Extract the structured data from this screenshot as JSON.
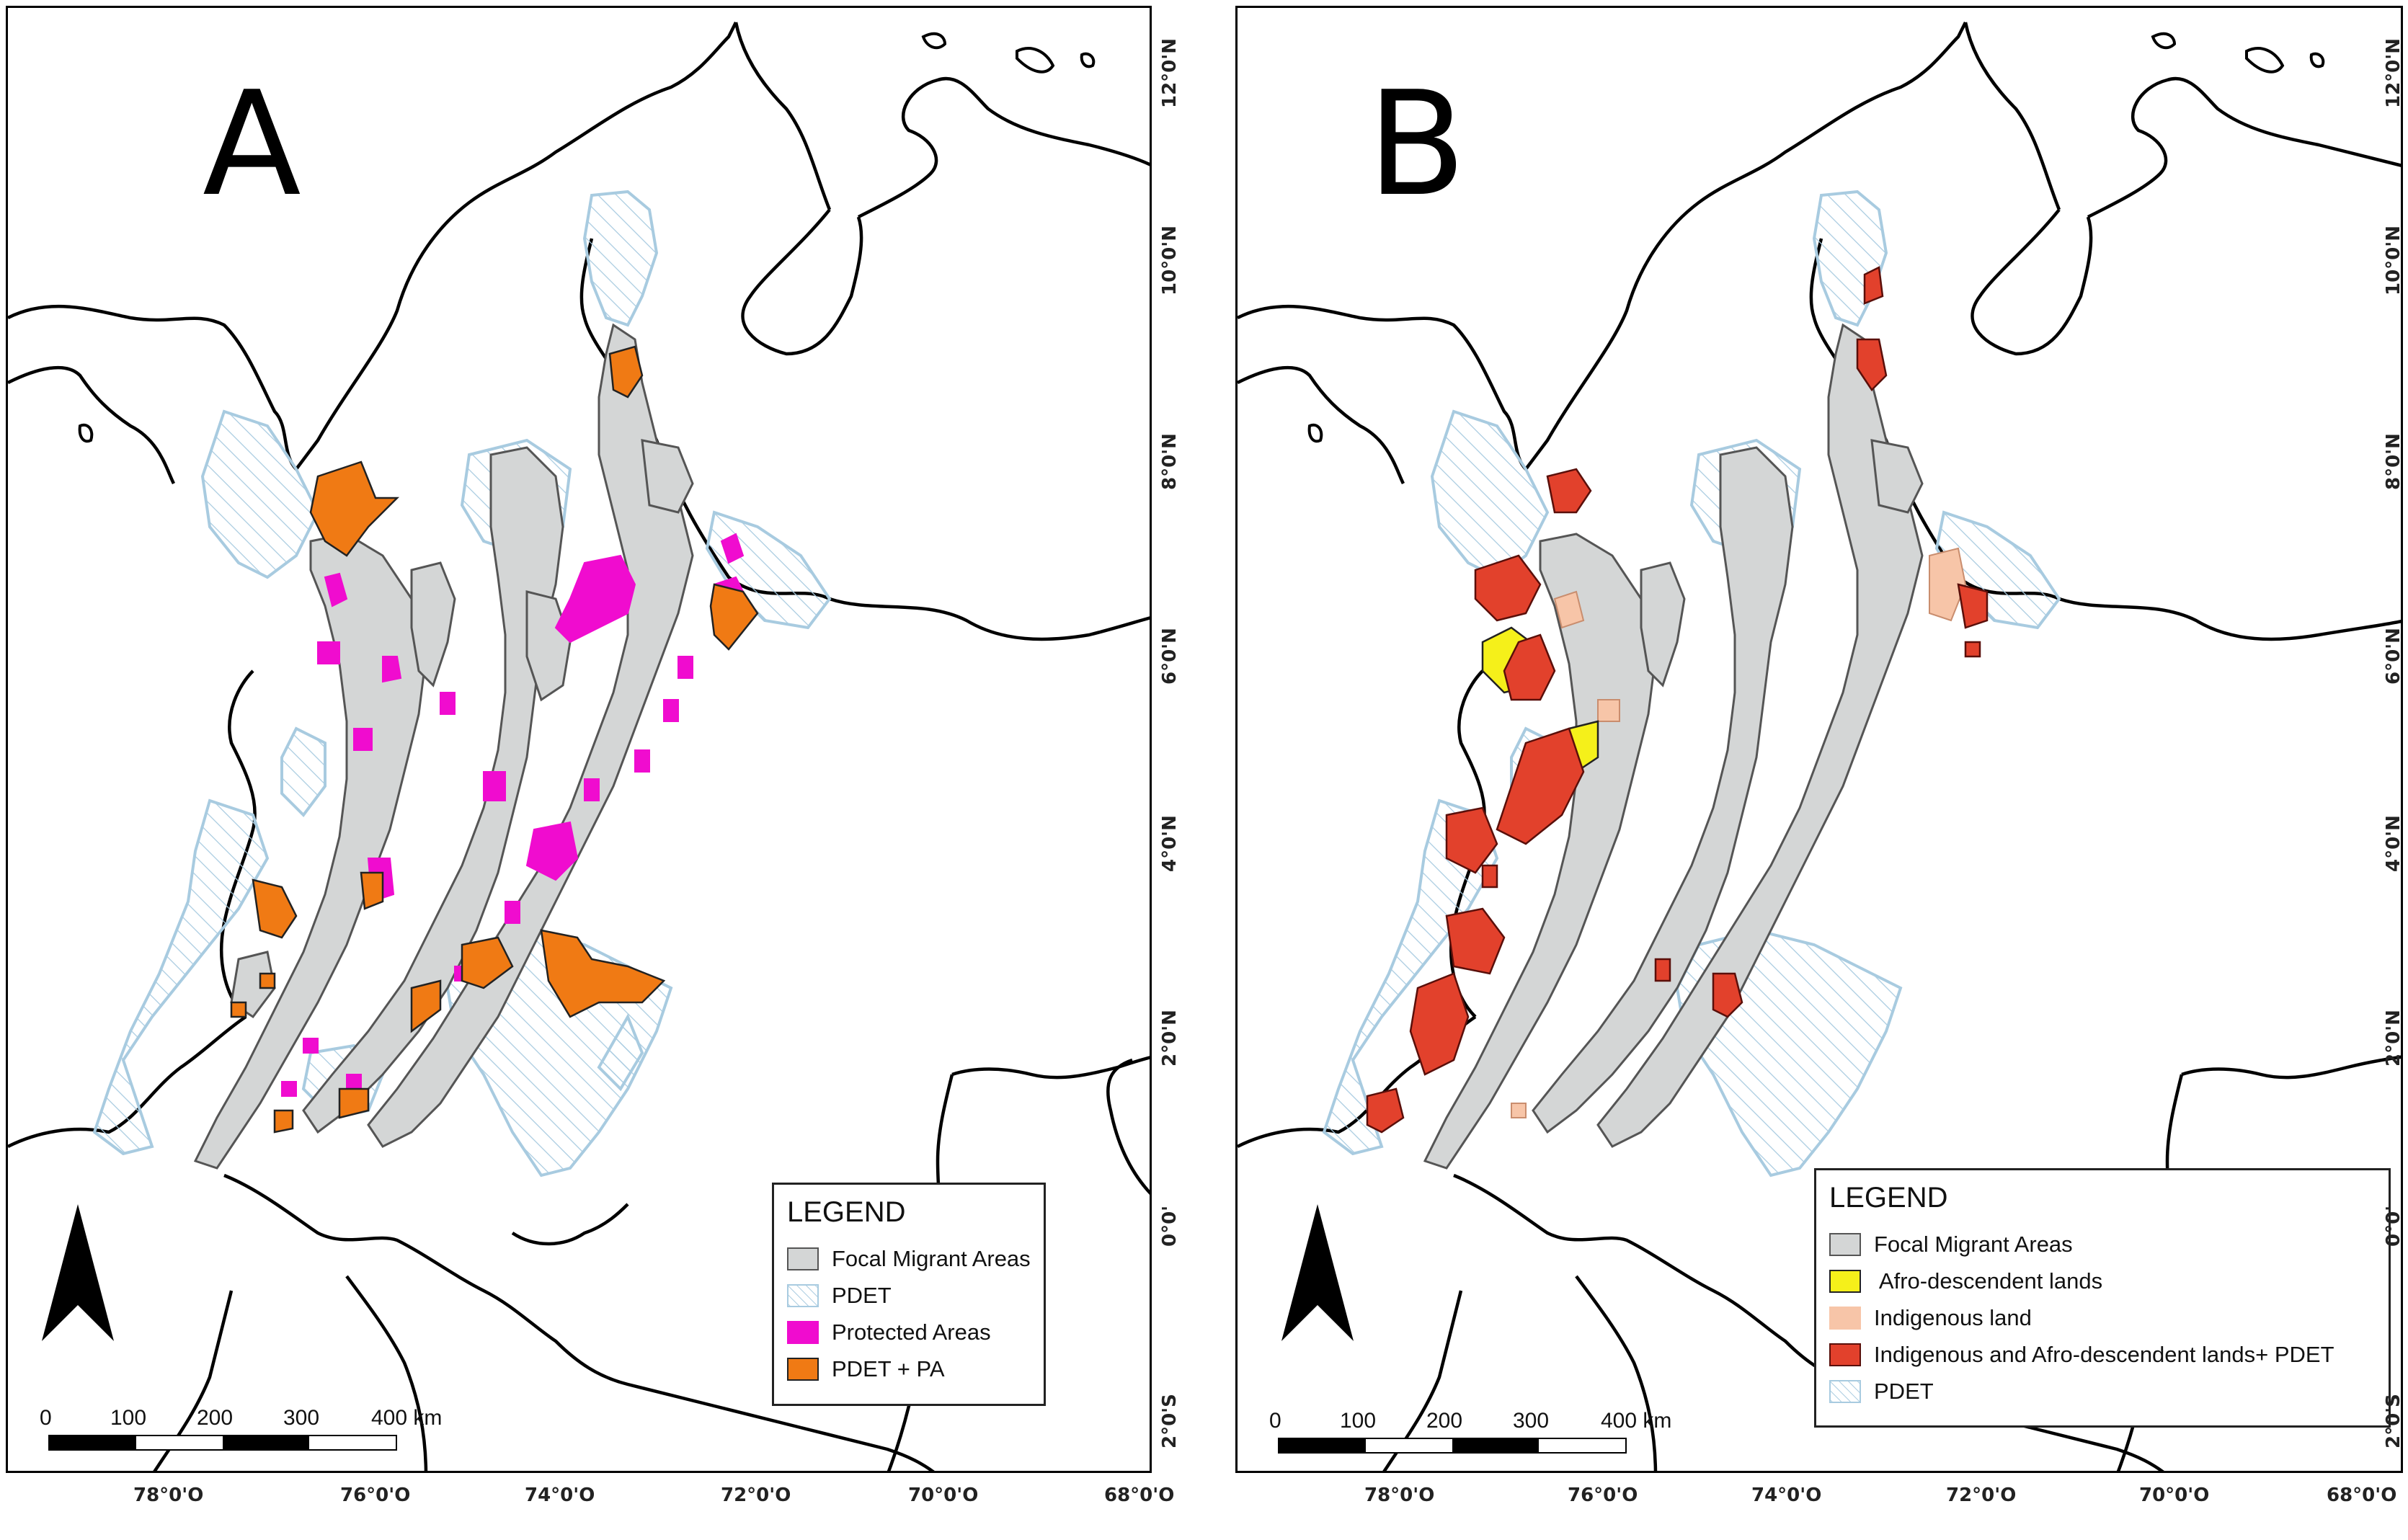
{
  "panels": [
    {
      "id": "A",
      "letter": "A",
      "legend": {
        "title": "LEGEND",
        "items": [
          {
            "label": "Focal Migrant Areas",
            "swatch": "focal"
          },
          {
            "label": "PDET",
            "swatch": "pdet"
          },
          {
            "label": "Protected Areas",
            "swatch": "protected"
          },
          {
            "label": "PDET + PA",
            "swatch": "pdetpa"
          }
        ]
      }
    },
    {
      "id": "B",
      "letter": "B",
      "legend": {
        "title": "LEGEND",
        "items": [
          {
            "label": "Focal Migrant Areas",
            "swatch": "focal"
          },
          {
            "label": " Afro-descendent lands",
            "swatch": "afro"
          },
          {
            "label": "Indigenous land",
            "swatch": "indigenous"
          },
          {
            "label": "Indigenous and Afro-descendent lands+ PDET",
            "swatch": "indafropdet"
          },
          {
            "label": "PDET",
            "swatch": "pdet"
          }
        ]
      }
    }
  ],
  "scale": {
    "labels": [
      "0",
      "100",
      "200",
      "300",
      "400 km"
    ]
  },
  "longitude_labels": [
    "78°0'O",
    "76°0'O",
    "74°0'O",
    "72°0'O",
    "70°0'O",
    "68°0'O"
  ],
  "latitude_labels": [
    "12°0'N",
    "10°0'N",
    "8°0'N",
    "6°0'N",
    "4°0'N",
    "2°0'N",
    "0°0'",
    "2°0'S"
  ],
  "colors": {
    "focal": "#d4d6d6",
    "focal_stroke": "#555555",
    "pdet_stroke": "#a8cbe0",
    "protected": "#f00ccf",
    "pdetpa": "#f07a14",
    "afro": "#f5f01a",
    "indigenous": "#f7c5a8",
    "indafropdet": "#e2412c",
    "coast": "#000000"
  }
}
